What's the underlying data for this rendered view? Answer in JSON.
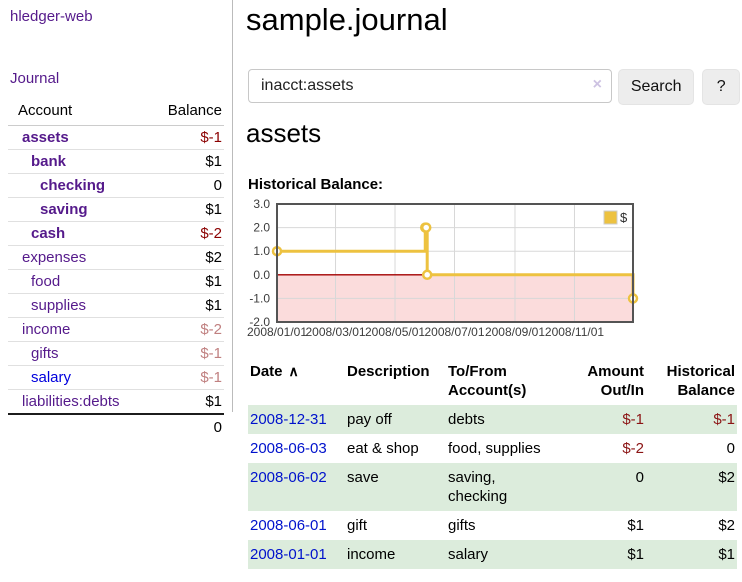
{
  "sidebar": {
    "brand": "hledger-web",
    "nav": {
      "journal": "Journal"
    },
    "accounts_table": {
      "header": {
        "account": "Account",
        "balance": "Balance"
      },
      "accounts": [
        {
          "name": "assets",
          "balance": "$-1"
        },
        {
          "name": "bank",
          "balance": "$1"
        },
        {
          "name": "checking",
          "balance": "0"
        },
        {
          "name": "saving",
          "balance": "$1"
        },
        {
          "name": "cash",
          "balance": "$-2"
        },
        {
          "name": "expenses",
          "balance": "$2"
        },
        {
          "name": "food",
          "balance": "$1"
        },
        {
          "name": "supplies",
          "balance": "$1"
        },
        {
          "name": "income",
          "balance": "$-2"
        },
        {
          "name": "gifts",
          "balance": "$-1"
        },
        {
          "name": "salary",
          "balance": "$-1"
        },
        {
          "name": "liabilities:debts",
          "balance": "$1"
        }
      ],
      "total": "0"
    }
  },
  "header": {
    "title": "sample.journal"
  },
  "search": {
    "value": "inacct:assets",
    "clear_icon": "×",
    "search_label": "Search",
    "help_label": "?"
  },
  "account_page": {
    "heading": "assets",
    "chart_label": "Historical Balance:"
  },
  "chart_data": {
    "type": "line",
    "steps": true,
    "title": "Historical Balance",
    "series": [
      {
        "name": "$",
        "points": [
          [
            "2008-01-01",
            1
          ],
          [
            "2008-06-01",
            2
          ],
          [
            "2008-06-02",
            2
          ],
          [
            "2008-06-03",
            0
          ],
          [
            "2008-12-31",
            -1
          ]
        ]
      }
    ],
    "x_ticks": [
      "2008/01/01",
      "2008/03/01",
      "2008/05/01",
      "2008/07/01",
      "2008/09/01",
      "2008/11/01"
    ],
    "y_ticks": [
      "3.0",
      "2.0",
      "1.0",
      "0.0",
      "-1.0",
      "-2.0"
    ],
    "x_range": [
      "2008-01-01",
      "2008-12-31"
    ],
    "y_range": [
      -2,
      3
    ],
    "grid": true,
    "legend": {
      "label": "$",
      "position": "top-right"
    },
    "colors": {
      "line": "#edc240",
      "marker_fill": "#ffffff",
      "negative_region": "#fbdcdc",
      "zero_line": "#a40000",
      "border": "#545454",
      "grid": "#d8d8d8"
    }
  },
  "register": {
    "columns": {
      "date": "Date",
      "description": "Description",
      "tofrom": "To/From Account(s)",
      "amount": "Amount Out/In",
      "balance": "Historical Balance"
    },
    "sort_icon": "∧",
    "rows": [
      {
        "date": "2008-12-31",
        "description": "pay off",
        "tofrom": "debts",
        "amount": "$-1",
        "balance": "$-1"
      },
      {
        "date": "2008-06-03",
        "description": "eat & shop",
        "tofrom": "food, supplies",
        "amount": "$-2",
        "balance": "0"
      },
      {
        "date": "2008-06-02",
        "description": "save",
        "tofrom": "saving,\nchecking",
        "amount": "0",
        "balance": "$2"
      },
      {
        "date": "2008-06-01",
        "description": "gift",
        "tofrom": "gifts",
        "amount": "$1",
        "balance": "$2"
      },
      {
        "date": "2008-01-01",
        "description": "income",
        "tofrom": "salary",
        "amount": "$1",
        "balance": "$1"
      }
    ]
  }
}
